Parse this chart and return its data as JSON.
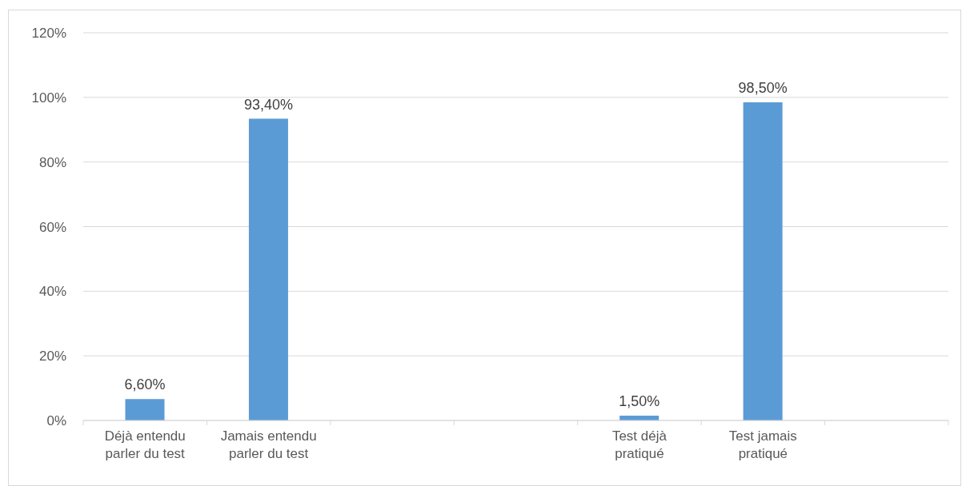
{
  "chart_data": {
    "type": "bar",
    "categories": [
      "Déjà entendu parler du test",
      "Jamais entendu parler du test",
      null,
      null,
      "Test déjà pratiqué",
      "Test jamais pratiqué",
      null
    ],
    "values": [
      6.6,
      93.4,
      null,
      null,
      1.5,
      98.5,
      null
    ],
    "value_labels": [
      "6,60%",
      "93,40%",
      null,
      null,
      "1,50%",
      "98,50%",
      null
    ],
    "color": "#5b9bd5",
    "ylim": [
      0,
      120
    ],
    "yticks": [
      {
        "value": 0,
        "label": "0%"
      },
      {
        "value": 20,
        "label": "20%"
      },
      {
        "value": 40,
        "label": "40%"
      },
      {
        "value": 60,
        "label": "60%"
      },
      {
        "value": 80,
        "label": "80%"
      },
      {
        "value": 100,
        "label": "100%"
      },
      {
        "value": 120,
        "label": "120%"
      }
    ],
    "grid": "y"
  }
}
